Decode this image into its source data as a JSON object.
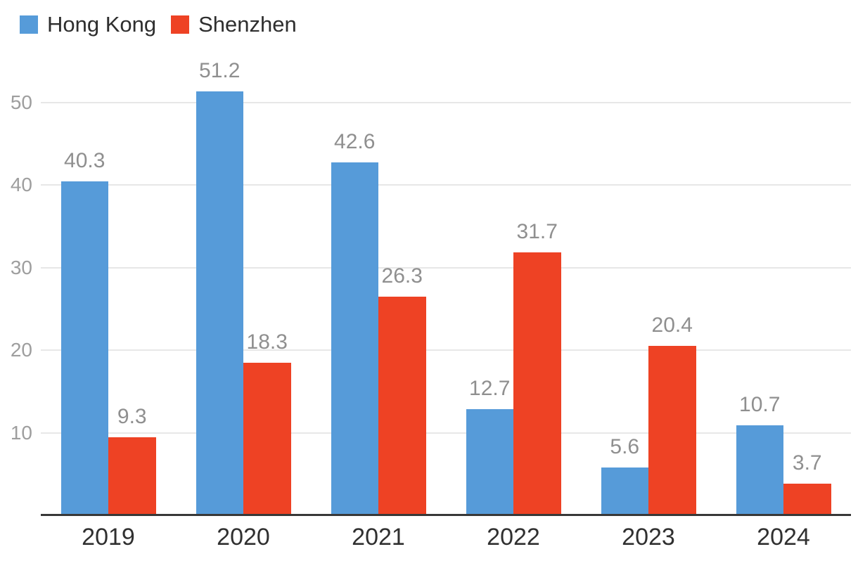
{
  "chart_data": {
    "type": "bar",
    "categories": [
      "2019",
      "2020",
      "2021",
      "2022",
      "2023",
      "2024"
    ],
    "series": [
      {
        "name": "Hong Kong",
        "color": "#569bd9",
        "values": [
          40.3,
          51.2,
          42.6,
          12.7,
          5.6,
          10.7
        ]
      },
      {
        "name": "Shenzhen",
        "color": "#ee4224",
        "values": [
          9.3,
          18.3,
          26.3,
          31.7,
          20.4,
          3.7
        ]
      }
    ],
    "yticks": [
      10,
      20,
      30,
      40,
      50
    ],
    "ylim": [
      0,
      55
    ],
    "grid": true,
    "legend_position": "top-left",
    "value_labels": true,
    "value_label_decimals": 1
  }
}
